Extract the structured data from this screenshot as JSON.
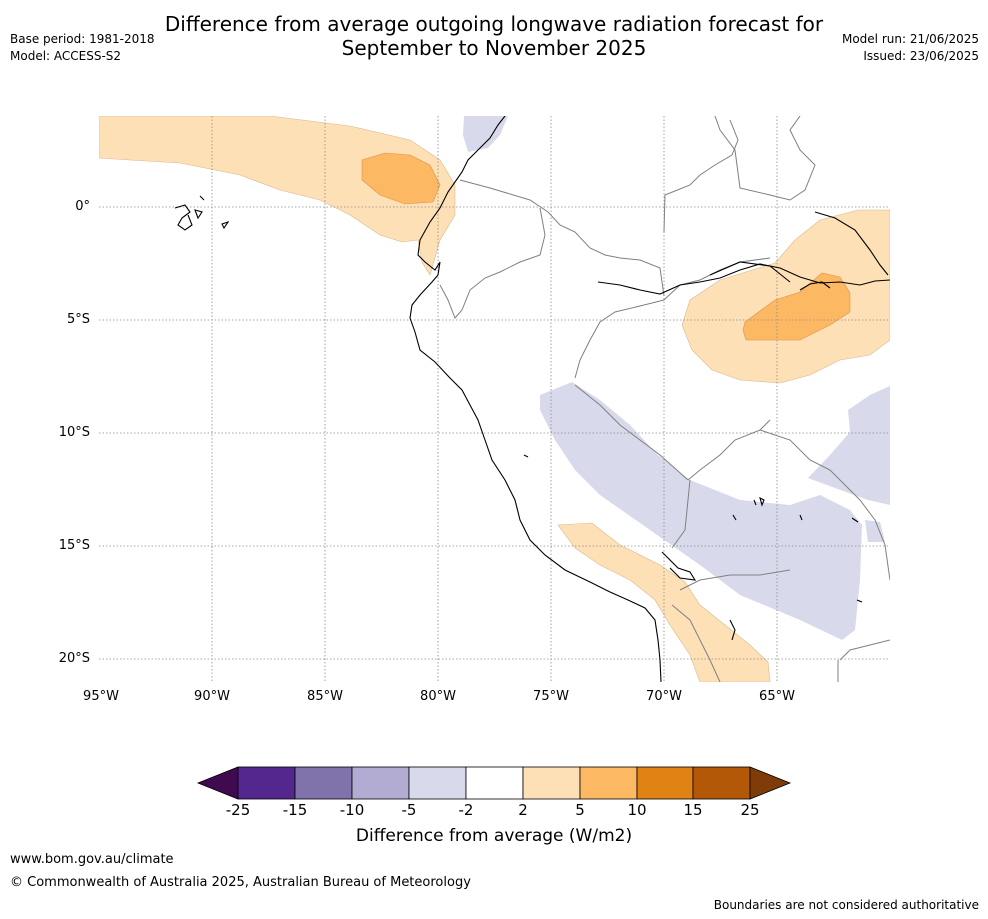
{
  "header": {
    "title_line1": "Difference from average outgoing longwave radiation forecast for",
    "title_line2": "September to November 2025",
    "base_period": "Base period: 1981-2018",
    "model": "Model: ACCESS-S2",
    "model_run": "Model run: 21/06/2025",
    "issued": "Issued: 23/06/2025"
  },
  "map": {
    "lat_labels": [
      "0°",
      "5°S",
      "10°S",
      "15°S",
      "20°S"
    ],
    "lon_labels": [
      "95°W",
      "90°W",
      "85°W",
      "80°W",
      "75°W",
      "70°W",
      "65°W"
    ]
  },
  "colorbar": {
    "ticks": [
      "-25",
      "-15",
      "-10",
      "-5",
      "-2",
      "2",
      "5",
      "10",
      "15",
      "25"
    ],
    "colors": [
      "#3f0a4f",
      "#54278f",
      "#8073ac",
      "#b2abd2",
      "#d8daeb",
      "#ffffff",
      "#fee0b6",
      "#fdb863",
      "#e08214",
      "#b35806",
      "#7f3b08"
    ],
    "label": "Difference from average (W/m2)"
  },
  "footer": {
    "url": "www.bom.gov.au/climate",
    "copyright": "© Commonwealth of Australia 2025, Australian Bureau of Meteorology",
    "disclaimer": "Boundaries are not considered authoritative"
  }
}
